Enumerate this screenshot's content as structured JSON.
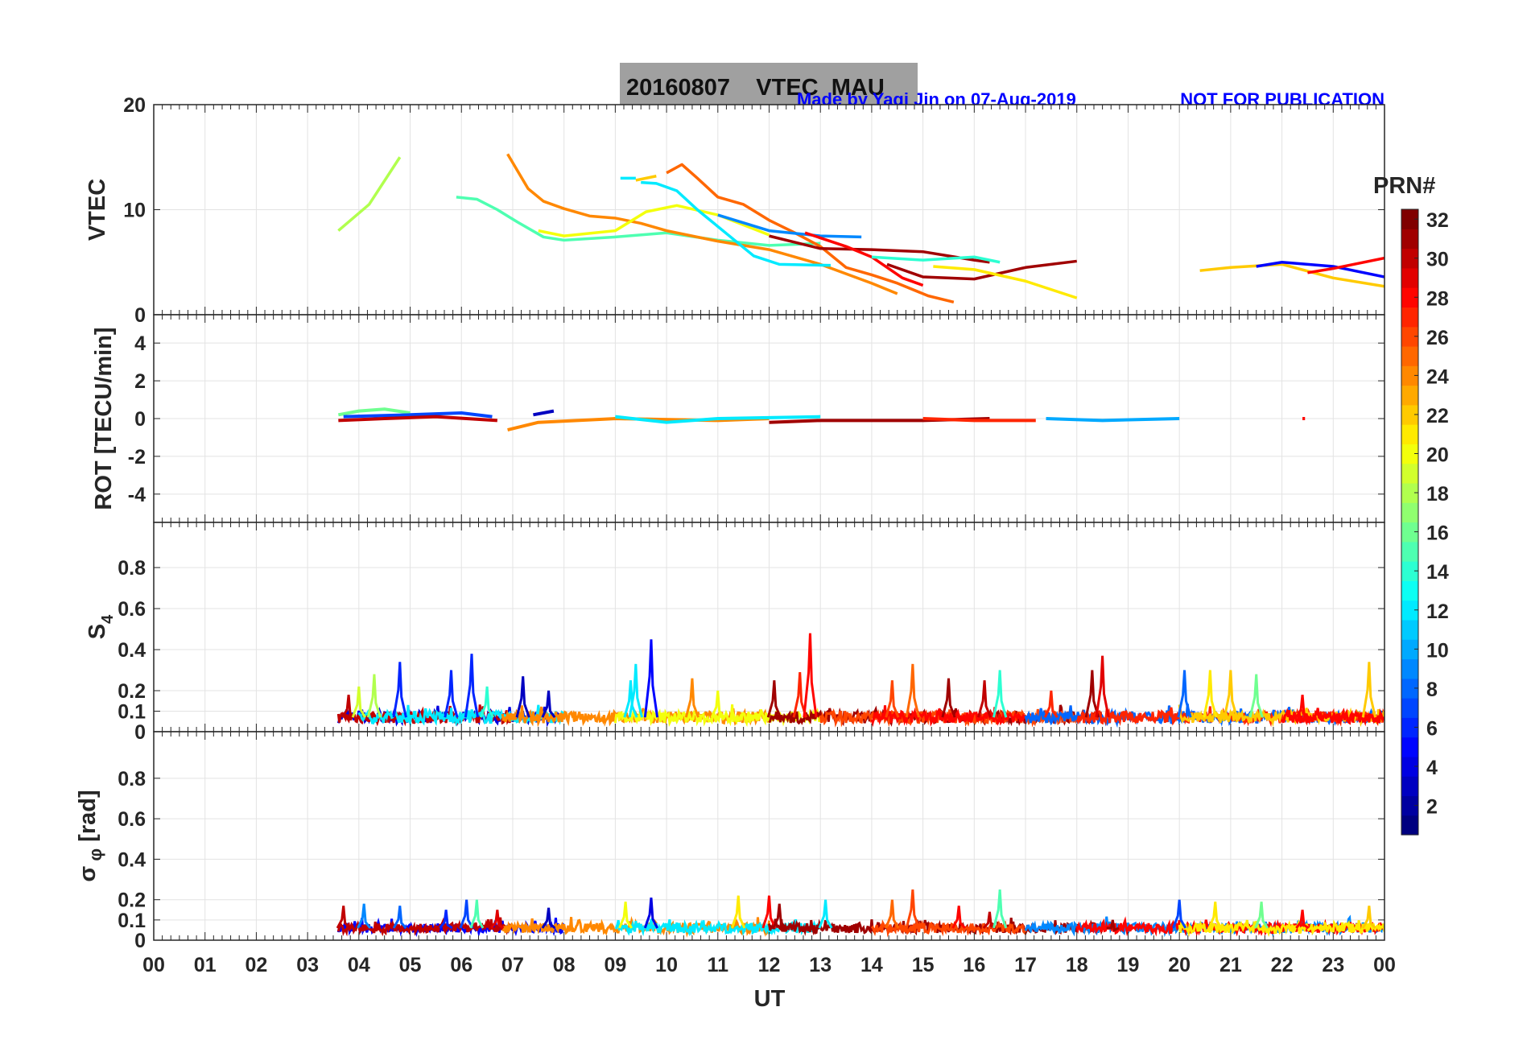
{
  "chart_data": {
    "type": "line",
    "title": "20160807    VTEC  MAU",
    "credit": "Made by Yaqi Jin on 07-Aug-2019",
    "notice": "NOT FOR PUBLICATION",
    "xlabel": "UT",
    "xlim": [
      0,
      24
    ],
    "xticklabels": [
      "00",
      "01",
      "02",
      "03",
      "04",
      "05",
      "06",
      "07",
      "08",
      "09",
      "10",
      "11",
      "12",
      "13",
      "14",
      "15",
      "16",
      "17",
      "18",
      "19",
      "20",
      "21",
      "22",
      "23",
      "00"
    ],
    "colorbar": {
      "label": "PRN#",
      "range": [
        1,
        32
      ],
      "ticks": [
        2,
        4,
        6,
        8,
        10,
        12,
        14,
        16,
        18,
        20,
        22,
        24,
        26,
        28,
        30,
        32
      ],
      "colormap": "jet"
    },
    "panels": [
      {
        "ylabel": "VTEC",
        "ylim": [
          0,
          20
        ],
        "yticks": [
          0,
          10,
          20
        ],
        "series": [
          {
            "prn": 18,
            "points": [
              [
                3.6,
                8
              ],
              [
                4.2,
                10.5
              ],
              [
                4.8,
                15
              ]
            ]
          },
          {
            "prn": 15,
            "points": [
              [
                5.9,
                11.2
              ],
              [
                6.3,
                11
              ],
              [
                6.7,
                10
              ],
              [
                7.1,
                8.8
              ],
              [
                7.6,
                7.4
              ],
              [
                8,
                7.1
              ],
              [
                9,
                7.4
              ],
              [
                10,
                7.8
              ],
              [
                11,
                7.1
              ],
              [
                12,
                6.6
              ],
              [
                13,
                6.8
              ]
            ]
          },
          {
            "prn": 24,
            "points": [
              [
                6.9,
                15.3
              ],
              [
                7.3,
                12
              ],
              [
                7.6,
                10.8
              ],
              [
                8,
                10.1
              ],
              [
                8.5,
                9.4
              ],
              [
                9,
                9.2
              ],
              [
                9.5,
                8.7
              ],
              [
                10,
                8
              ],
              [
                11,
                7
              ],
              [
                12,
                6.2
              ],
              [
                13,
                4.8
              ],
              [
                14,
                3
              ],
              [
                14.5,
                2
              ]
            ]
          },
          {
            "prn": 20,
            "points": [
              [
                7.5,
                8
              ],
              [
                8,
                7.5
              ],
              [
                9,
                8
              ],
              [
                9.6,
                9.8
              ],
              [
                10.2,
                10.4
              ],
              [
                11,
                9.5
              ],
              [
                12,
                7.6
              ]
            ]
          },
          {
            "prn": 12,
            "points": [
              [
                9.5,
                12.6
              ],
              [
                9.8,
                12.5
              ],
              [
                10.2,
                11.8
              ],
              [
                10.6,
                10
              ],
              [
                11.2,
                7.6
              ],
              [
                11.7,
                5.6
              ],
              [
                12.2,
                4.8
              ],
              [
                13.2,
                4.7
              ]
            ]
          },
          {
            "prn": 12,
            "points": [
              [
                9.1,
                13
              ],
              [
                9.4,
                13
              ]
            ]
          },
          {
            "prn": 22,
            "points": [
              [
                9.4,
                12.8
              ],
              [
                9.8,
                13.2
              ]
            ]
          },
          {
            "prn": 25,
            "points": [
              [
                10,
                13.5
              ],
              [
                10.3,
                14.3
              ],
              [
                10.6,
                13
              ],
              [
                11,
                11.2
              ],
              [
                11.5,
                10.5
              ],
              [
                12,
                9
              ],
              [
                12.5,
                7.8
              ],
              [
                13,
                6.5
              ],
              [
                13.5,
                4.5
              ],
              [
                14,
                3.8
              ],
              [
                14.5,
                3
              ],
              [
                15.1,
                1.8
              ],
              [
                15.6,
                1.2
              ]
            ]
          },
          {
            "prn": 9,
            "points": [
              [
                11,
                9.5
              ],
              [
                12,
                8
              ],
              [
                13,
                7.5
              ],
              [
                13.8,
                7.4
              ]
            ]
          },
          {
            "prn": 31,
            "points": [
              [
                12,
                7.5
              ],
              [
                13,
                6.3
              ],
              [
                14,
                6.2
              ],
              [
                15,
                6
              ],
              [
                16,
                5.2
              ],
              [
                16.3,
                5
              ]
            ]
          },
          {
            "prn": 28,
            "points": [
              [
                12.7,
                7.8
              ],
              [
                13.5,
                6.5
              ],
              [
                14,
                5.5
              ],
              [
                14.6,
                3.5
              ],
              [
                15,
                2.8
              ]
            ]
          },
          {
            "prn": 31,
            "points": [
              [
                14.3,
                4.8
              ],
              [
                15,
                3.6
              ],
              [
                16,
                3.4
              ],
              [
                17,
                4.5
              ],
              [
                18,
                5.1
              ]
            ]
          },
          {
            "prn": 14,
            "points": [
              [
                14,
                5.5
              ],
              [
                15,
                5.2
              ],
              [
                16,
                5.5
              ],
              [
                16.5,
                5
              ]
            ]
          },
          {
            "prn": 21,
            "points": [
              [
                15.2,
                4.6
              ],
              [
                16,
                4.3
              ],
              [
                17,
                3.2
              ],
              [
                18,
                1.6
              ]
            ]
          },
          {
            "prn": 22,
            "points": [
              [
                20.4,
                4.2
              ],
              [
                21,
                4.5
              ],
              [
                22,
                4.8
              ],
              [
                23,
                3.5
              ],
              [
                24,
                2.7
              ]
            ]
          },
          {
            "prn": 5,
            "points": [
              [
                21.5,
                4.6
              ],
              [
                22,
                5
              ],
              [
                23,
                4.6
              ],
              [
                24,
                3.6
              ]
            ]
          },
          {
            "prn": 28,
            "points": [
              [
                22.5,
                4
              ],
              [
                23,
                4.4
              ],
              [
                24,
                5.4
              ]
            ]
          }
        ]
      },
      {
        "ylabel": "ROT [TECU/min]",
        "ylim": [
          -5.5,
          5.5
        ],
        "yticks": [
          -4,
          -2,
          0,
          2,
          4
        ],
        "series": [
          {
            "prn": 16,
            "points": [
              [
                3.6,
                0.2
              ],
              [
                4,
                0.4
              ],
              [
                4.5,
                0.5
              ],
              [
                5,
                0.3
              ]
            ]
          },
          {
            "prn": 7,
            "points": [
              [
                3.7,
                0.1
              ],
              [
                5,
                0.2
              ],
              [
                6,
                0.3
              ],
              [
                6.6,
                0.1
              ]
            ]
          },
          {
            "prn": 30,
            "points": [
              [
                3.6,
                -0.1
              ],
              [
                4.5,
                0
              ],
              [
                5.5,
                0.1
              ],
              [
                6.7,
                -0.1
              ]
            ]
          },
          {
            "prn": 3,
            "points": [
              [
                7.4,
                0.2
              ],
              [
                7.8,
                0.4
              ]
            ]
          },
          {
            "prn": 24,
            "points": [
              [
                6.9,
                -0.6
              ],
              [
                7.5,
                -0.2
              ],
              [
                9,
                0
              ],
              [
                11,
                -0.1
              ],
              [
                12,
                0
              ]
            ]
          },
          {
            "prn": 12,
            "points": [
              [
                9,
                0.1
              ],
              [
                10,
                -0.2
              ],
              [
                11,
                0
              ],
              [
                13,
                0.1
              ]
            ]
          },
          {
            "prn": 31,
            "points": [
              [
                12,
                -0.2
              ],
              [
                13,
                -0.1
              ],
              [
                15,
                -0.1
              ],
              [
                16.3,
                0
              ]
            ]
          },
          {
            "prn": 27,
            "points": [
              [
                15,
                0
              ],
              [
                16,
                -0.1
              ],
              [
                17.2,
                -0.1
              ]
            ]
          },
          {
            "prn": 10,
            "points": [
              [
                17.4,
                0
              ],
              [
                18.5,
                -0.1
              ],
              [
                20,
                0
              ]
            ]
          },
          {
            "prn": 28,
            "points": [
              [
                22.4,
                0
              ],
              [
                22.45,
                0
              ]
            ]
          }
        ]
      },
      {
        "ylabel": "S4",
        "ylim": [
          0,
          1.02
        ],
        "yticks": [
          0,
          0.1,
          0.2,
          0.4,
          0.6,
          0.8
        ],
        "baseline": 0.07,
        "spikes": [
          [
            3.8,
            0.18,
            30
          ],
          [
            4,
            0.22,
            19
          ],
          [
            4.3,
            0.28,
            18
          ],
          [
            4.8,
            0.34,
            6
          ],
          [
            5.8,
            0.3,
            6
          ],
          [
            6.2,
            0.38,
            6
          ],
          [
            6.5,
            0.22,
            14
          ],
          [
            7.2,
            0.27,
            3
          ],
          [
            7.7,
            0.2,
            3
          ],
          [
            9.3,
            0.25,
            12
          ],
          [
            9.4,
            0.33,
            12
          ],
          [
            9.7,
            0.45,
            5
          ],
          [
            10.5,
            0.26,
            24
          ],
          [
            11,
            0.2,
            20
          ],
          [
            12.1,
            0.25,
            31
          ],
          [
            12.6,
            0.29,
            27
          ],
          [
            12.8,
            0.48,
            28
          ],
          [
            14.4,
            0.25,
            26
          ],
          [
            14.8,
            0.33,
            25
          ],
          [
            15.5,
            0.26,
            31
          ],
          [
            16.2,
            0.25,
            30
          ],
          [
            16.5,
            0.3,
            14
          ],
          [
            17.5,
            0.2,
            27
          ],
          [
            18.3,
            0.3,
            31
          ],
          [
            18.5,
            0.37,
            29
          ],
          [
            20.1,
            0.3,
            8
          ],
          [
            20.6,
            0.3,
            21
          ],
          [
            21,
            0.3,
            22
          ],
          [
            21.5,
            0.28,
            16
          ],
          [
            22.4,
            0.18,
            28
          ],
          [
            23.7,
            0.34,
            22
          ]
        ],
        "segments": [
          [
            3.6,
            8,
            4
          ],
          [
            3.6,
            7,
            30
          ],
          [
            4,
            8,
            12
          ],
          [
            6.8,
            12,
            24
          ],
          [
            9,
            13,
            20
          ],
          [
            12,
            18.5,
            31
          ],
          [
            13,
            18,
            26
          ],
          [
            14,
            17,
            28
          ],
          [
            17,
            24,
            8
          ],
          [
            18,
            24,
            27
          ],
          [
            20,
            24,
            22
          ],
          [
            22,
            24,
            28
          ]
        ]
      },
      {
        "ylabel": "σ_φ [rad]",
        "ylim": [
          0,
          1.03
        ],
        "yticks": [
          0,
          0.1,
          0.2,
          0.4,
          0.6,
          0.8
        ],
        "baseline": 0.06,
        "spikes": [
          [
            3.7,
            0.17,
            30
          ],
          [
            4.1,
            0.18,
            9
          ],
          [
            4.8,
            0.17,
            8
          ],
          [
            5.7,
            0.15,
            6
          ],
          [
            6.1,
            0.2,
            7
          ],
          [
            6.3,
            0.2,
            15
          ],
          [
            6.7,
            0.15,
            29
          ],
          [
            7.7,
            0.16,
            3
          ],
          [
            9.2,
            0.19,
            20
          ],
          [
            9.7,
            0.21,
            4
          ],
          [
            11.4,
            0.22,
            21
          ],
          [
            12,
            0.22,
            28
          ],
          [
            12.2,
            0.18,
            31
          ],
          [
            13.1,
            0.2,
            12
          ],
          [
            14.4,
            0.2,
            25
          ],
          [
            14.8,
            0.25,
            26
          ],
          [
            15.7,
            0.17,
            28
          ],
          [
            16.3,
            0.14,
            30
          ],
          [
            16.5,
            0.25,
            15
          ],
          [
            18.7,
            0.1,
            31
          ],
          [
            20,
            0.2,
            7
          ],
          [
            20.7,
            0.19,
            21
          ],
          [
            21.6,
            0.19,
            16
          ],
          [
            22.4,
            0.15,
            28
          ],
          [
            23.7,
            0.17,
            22
          ]
        ],
        "segments": [
          [
            3.6,
            8,
            5
          ],
          [
            3.6,
            7,
            30
          ],
          [
            6.8,
            12,
            24
          ],
          [
            9,
            13,
            12
          ],
          [
            12,
            18.5,
            31
          ],
          [
            14,
            17,
            26
          ],
          [
            17,
            24,
            9
          ],
          [
            18,
            24,
            28
          ],
          [
            20,
            24,
            21
          ]
        ]
      }
    ]
  }
}
